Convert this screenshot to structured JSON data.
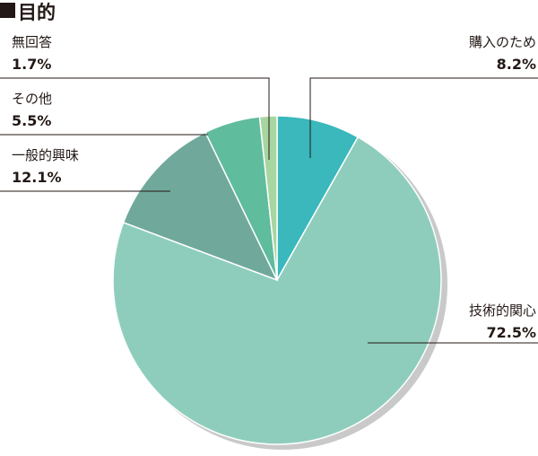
{
  "heading": "目的",
  "colors": {
    "slice_purchase": "#3ab8bc",
    "slice_tech": "#8ecdbc",
    "slice_general": "#70a99b",
    "slice_other": "#5fbc9d",
    "slice_noanswer": "#a7d6a0",
    "shadow": "#c9c9c9"
  },
  "chart_data": {
    "type": "pie",
    "title": "目的",
    "slices": [
      {
        "label": "購入のため",
        "value": 8.2,
        "display": "8.2%",
        "color": "#3ab8bc"
      },
      {
        "label": "技術的関心",
        "value": 72.5,
        "display": "72.5%",
        "color": "#8ecdbc"
      },
      {
        "label": "一般的興味",
        "value": 12.1,
        "display": "12.1%",
        "color": "#70a99b"
      },
      {
        "label": "その他",
        "value": 5.5,
        "display": "5.5%",
        "color": "#5fbc9d"
      },
      {
        "label": "無回答",
        "value": 1.7,
        "display": "1.7%",
        "color": "#a7d6a0"
      }
    ],
    "start_angle": "12 o'clock",
    "direction": "clockwise",
    "legend": "none"
  }
}
